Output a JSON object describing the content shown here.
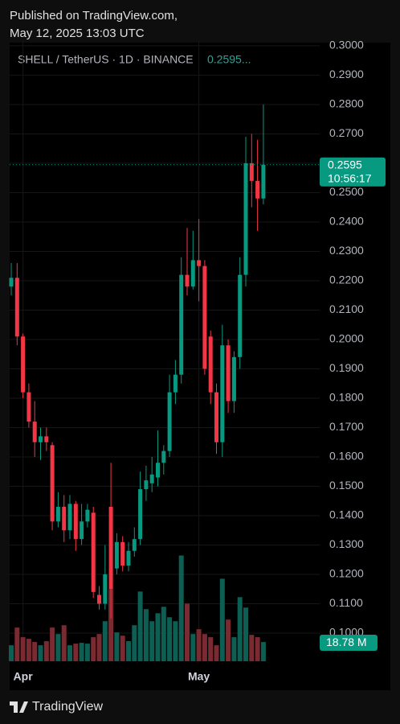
{
  "published": "Published on TradingView.com,",
  "published_date": "May 12, 2025 13:03 UTC",
  "footer": "TradingView",
  "chart_data": {
    "type": "candlestick",
    "symbol": "SHELL / TetherUS · 1D · BINANCE",
    "header_price": "0.2595...",
    "categories": [
      null,
      null,
      "Apr",
      null,
      null,
      null,
      null,
      null,
      null,
      null,
      null,
      null,
      null,
      null,
      null,
      null,
      null,
      null,
      null,
      null,
      null,
      null,
      null,
      null,
      null,
      null,
      null,
      null,
      null,
      null,
      null,
      null,
      "May",
      null,
      null,
      null,
      null,
      null,
      null,
      null,
      null,
      null,
      null,
      null
    ],
    "open": [
      0.218,
      0.221,
      0.201,
      0.182,
      0.172,
      0.165,
      0.167,
      0.164,
      0.138,
      0.143,
      0.135,
      0.144,
      0.132,
      0.138,
      0.141,
      0.113,
      0.11,
      0.143,
      0.122,
      0.131,
      0.123,
      0.128,
      0.132,
      0.149,
      0.151,
      0.153,
      0.158,
      0.162,
      0.182,
      0.188,
      0.222,
      0.218,
      0.227,
      0.225,
      0.201,
      0.182,
      0.165,
      0.198,
      0.179,
      0.194,
      0.222,
      0.26,
      0.254,
      0.248
    ],
    "high": [
      0.226,
      0.226,
      0.202,
      0.185,
      0.179,
      0.17,
      0.17,
      0.165,
      0.148,
      0.147,
      0.147,
      0.145,
      0.144,
      0.144,
      0.143,
      0.116,
      0.13,
      0.158,
      0.134,
      0.133,
      0.131,
      0.136,
      0.155,
      0.157,
      0.16,
      0.169,
      0.164,
      0.188,
      0.193,
      0.228,
      0.238,
      0.237,
      0.241,
      0.227,
      0.203,
      0.185,
      0.205,
      0.2,
      0.196,
      0.228,
      0.269,
      0.27,
      0.268,
      0.28
    ],
    "low": [
      0.215,
      0.198,
      0.18,
      0.17,
      0.16,
      0.159,
      0.162,
      0.135,
      0.136,
      0.131,
      0.132,
      0.128,
      0.13,
      0.136,
      0.112,
      0.108,
      0.108,
      0.105,
      0.12,
      0.121,
      0.121,
      0.126,
      0.13,
      0.145,
      0.148,
      0.15,
      0.154,
      0.16,
      0.178,
      0.185,
      0.215,
      0.217,
      0.213,
      0.188,
      0.178,
      0.161,
      0.16,
      0.175,
      0.175,
      0.19,
      0.218,
      0.245,
      0.237,
      0.246
    ],
    "close": [
      0.221,
      0.201,
      0.182,
      0.172,
      0.165,
      0.167,
      0.165,
      0.138,
      0.143,
      0.135,
      0.144,
      0.132,
      0.138,
      0.142,
      0.114,
      0.11,
      0.12,
      0.115,
      0.131,
      0.123,
      0.128,
      0.132,
      0.149,
      0.152,
      0.154,
      0.158,
      0.162,
      0.182,
      0.188,
      0.222,
      0.218,
      0.227,
      0.225,
      0.19,
      0.182,
      0.165,
      0.198,
      0.179,
      0.194,
      0.222,
      0.26,
      0.254,
      0.248,
      0.2595
    ],
    "up_color": "#089981",
    "down_color": "#f23645",
    "ylim": [
      0.0904,
      0.3019
    ],
    "yticks": [
      {
        "value": 0.3,
        "label": "0.3000"
      },
      {
        "value": 0.29,
        "label": "0.2900"
      },
      {
        "value": 0.28,
        "label": "0.2800"
      },
      {
        "value": 0.27,
        "label": "0.2700"
      },
      {
        "value": 0.26,
        "label": "0.2600"
      },
      {
        "value": 0.25,
        "label": "0.2500"
      },
      {
        "value": 0.24,
        "label": "0.2400"
      },
      {
        "value": 0.23,
        "label": "0.2300"
      },
      {
        "value": 0.22,
        "label": "0.2200"
      },
      {
        "value": 0.21,
        "label": "0.2100"
      },
      {
        "value": 0.2,
        "label": "0.2000"
      },
      {
        "value": 0.19,
        "label": "0.1900"
      },
      {
        "value": 0.18,
        "label": "0.1800"
      },
      {
        "value": 0.17,
        "label": "0.1700"
      },
      {
        "value": 0.16,
        "label": "0.1600"
      },
      {
        "value": 0.15,
        "label": "0.1500"
      },
      {
        "value": 0.14,
        "label": "0.1400"
      },
      {
        "value": 0.13,
        "label": "0.1300"
      },
      {
        "value": 0.12,
        "label": "0.1200"
      },
      {
        "value": 0.11,
        "label": "0.1100"
      },
      {
        "value": 0.1,
        "label": "0.1000"
      }
    ],
    "grid": true,
    "last_price": {
      "value": 0.2595,
      "label": "0.2595"
    },
    "countdown": "10:56:17",
    "volume": {
      "ylim": [
        0,
        110
      ],
      "values": [
        15.6,
        32.9,
        23.5,
        21.9,
        18.8,
        15.6,
        19.6,
        32.9,
        26.6,
        35.2,
        15.6,
        17.2,
        18.0,
        17.2,
        23.5,
        26.6,
        39.1,
        70.4,
        28.2,
        25.0,
        19.6,
        35.2,
        68.1,
        50.9,
        39.1,
        46.9,
        53.2,
        43.0,
        39.1,
        103.3,
        56.3,
        26.6,
        31.3,
        26.6,
        23.5,
        15.6,
        80.6,
        40.7,
        23.5,
        62.6,
        52.4,
        25.8,
        23.5,
        18.78
      ],
      "value_labels": [
        null,
        null,
        null,
        null,
        null,
        null,
        null,
        null,
        null,
        null,
        null,
        null,
        null,
        null,
        null,
        null,
        null,
        null,
        null,
        null,
        null,
        null,
        null,
        null,
        null,
        null,
        null,
        null,
        null,
        null,
        null,
        null,
        null,
        null,
        null,
        null,
        null,
        null,
        null,
        null,
        null,
        null,
        null,
        "18.78 M"
      ]
    }
  }
}
